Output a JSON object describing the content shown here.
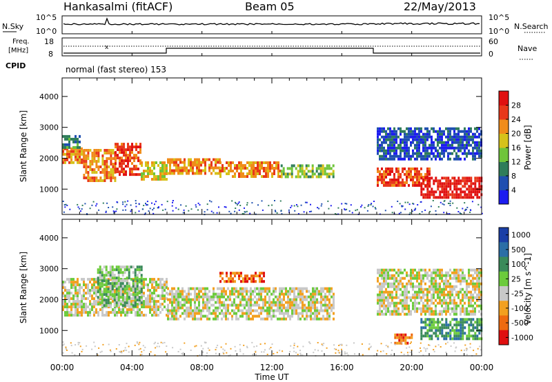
{
  "header": {
    "station": "Hankasalmi (fitACF)",
    "beam": "Beam 05",
    "date": "22/May/2013"
  },
  "noise_panel": {
    "left_label": "N.Sky",
    "right_label": "N.Search",
    "tick_top": "10^5",
    "tick_bottom": "10^0"
  },
  "freq_panel": {
    "left_label_1": "Freq.",
    "left_label_2": "[MHz]",
    "left_tick_top": "18",
    "left_tick_bottom": "8",
    "right_label": "Nave",
    "right_tick_top": "60",
    "right_tick_bottom": "0"
  },
  "cpid": {
    "label": "CPID",
    "value": "normal (fast stereo) 153"
  },
  "x_axis": {
    "label": "Time UT",
    "ticks": [
      "00:00",
      "04:00",
      "08:00",
      "12:00",
      "16:00",
      "20:00",
      "00:00"
    ]
  },
  "power_colorbar": {
    "label": "Power [dB]",
    "ticks": [
      "4",
      "8",
      "12",
      "16",
      "20",
      "24",
      "28"
    ],
    "colors": [
      "#1c1cf0",
      "#1f4fb0",
      "#2f7d5a",
      "#6fc43a",
      "#d6c21a",
      "#f08c1a",
      "#e8381a",
      "#e01010"
    ]
  },
  "velocity_colorbar": {
    "label": "Velocity [m s^-1]",
    "ticks": [
      "1000",
      "500",
      "100",
      "25",
      "-25",
      "-100",
      "-500",
      "-1000"
    ],
    "colors": [
      "#1b3fa6",
      "#2b6ea6",
      "#3a8a5a",
      "#6ccb3c",
      "#c8c8c8",
      "#f2a020",
      "#ee6a10",
      "#e01010"
    ]
  },
  "chart_data": [
    {
      "type": "heatmap",
      "title": "Power",
      "xlabel": "Time UT",
      "ylabel": "Slant Range [km]",
      "x_range_hours": [
        0,
        24
      ],
      "ylim": [
        180,
        4600
      ],
      "y_ticks": [
        1000,
        2000,
        3000,
        4000
      ],
      "colorbar_label": "Power [dB]",
      "colorbar_ticks": [
        4,
        8,
        12,
        16,
        20,
        24,
        28
      ],
      "echo_regions": [
        {
          "t": [
            0.0,
            1.2
          ],
          "range": [
            1850,
            2350
          ],
          "level": 5
        },
        {
          "t": [
            0.0,
            1.0
          ],
          "range": [
            2350,
            2750
          ],
          "level": 2
        },
        {
          "t": [
            1.2,
            3.0
          ],
          "range": [
            1300,
            2300
          ],
          "level": 5
        },
        {
          "t": [
            3.0,
            4.5
          ],
          "range": [
            1500,
            2500
          ],
          "level": 6
        },
        {
          "t": [
            4.5,
            6.0
          ],
          "range": [
            1300,
            1900
          ],
          "level": 4
        },
        {
          "t": [
            6.0,
            9.0
          ],
          "range": [
            1500,
            2000
          ],
          "level": 5
        },
        {
          "t": [
            9.0,
            12.5
          ],
          "range": [
            1450,
            1900
          ],
          "level": 5
        },
        {
          "t": [
            12.5,
            15.5
          ],
          "range": [
            1400,
            1800
          ],
          "level": 3
        },
        {
          "t": [
            18.0,
            21.0
          ],
          "range": [
            1100,
            1700
          ],
          "level": 6
        },
        {
          "t": [
            20.5,
            24.0
          ],
          "range": [
            700,
            1400
          ],
          "level": 7
        },
        {
          "t": [
            18.0,
            24.0
          ],
          "range": [
            2000,
            3000
          ],
          "level": 1
        }
      ]
    },
    {
      "type": "heatmap",
      "title": "Velocity",
      "xlabel": "Time UT",
      "ylabel": "Slant Range [km]",
      "x_range_hours": [
        0,
        24
      ],
      "ylim": [
        180,
        4600
      ],
      "y_ticks": [
        1000,
        2000,
        3000,
        4000
      ],
      "colorbar_label": "Velocity [m s^-1]",
      "colorbar_ticks": [
        1000,
        500,
        100,
        25,
        -25,
        -100,
        -500,
        -1000
      ],
      "echo_regions": [
        {
          "t": [
            0.0,
            6.0
          ],
          "range": [
            1500,
            2700
          ],
          "level": 4
        },
        {
          "t": [
            2.0,
            4.5
          ],
          "range": [
            1800,
            3100
          ],
          "level": 3
        },
        {
          "t": [
            6.0,
            15.5
          ],
          "range": [
            1400,
            2400
          ],
          "level": 4
        },
        {
          "t": [
            9.0,
            11.5
          ],
          "range": [
            2600,
            2900
          ],
          "level": 6
        },
        {
          "t": [
            18.0,
            24.0
          ],
          "range": [
            1500,
            3000
          ],
          "level": 4
        },
        {
          "t": [
            20.5,
            24.0
          ],
          "range": [
            700,
            1400
          ],
          "level": 2
        },
        {
          "t": [
            19.0,
            20.0
          ],
          "range": [
            600,
            900
          ],
          "level": 6
        }
      ]
    }
  ]
}
